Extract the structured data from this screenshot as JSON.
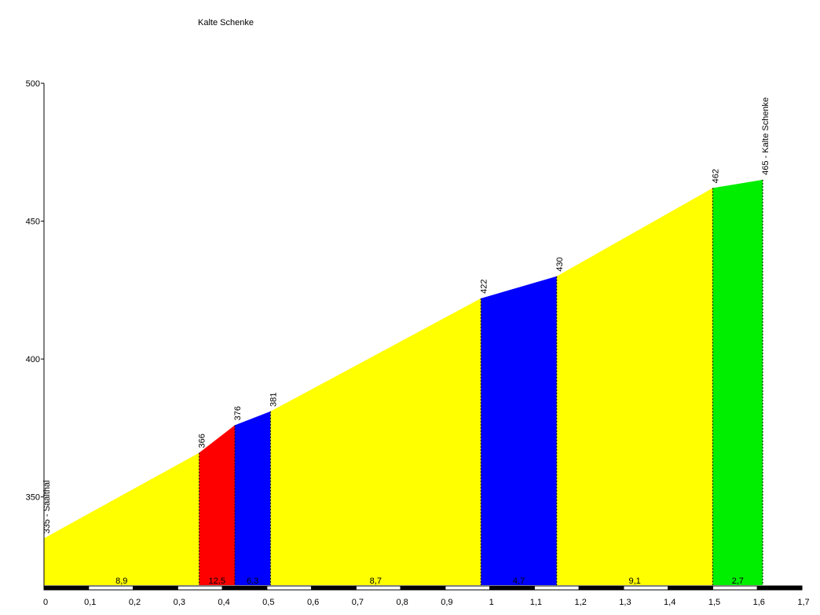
{
  "chart_data": {
    "type": "area",
    "title": "Kalte Schenke",
    "xlabel": "",
    "ylabel": "",
    "xlim": [
      0,
      1.7
    ],
    "ylim": [
      318,
      500
    ],
    "x_ticks": [
      {
        "value": 0,
        "label": "0"
      },
      {
        "value": 0.1,
        "label": "0,1"
      },
      {
        "value": 0.2,
        "label": "0,2"
      },
      {
        "value": 0.3,
        "label": "0,3"
      },
      {
        "value": 0.4,
        "label": "0,4"
      },
      {
        "value": 0.5,
        "label": "0,5"
      },
      {
        "value": 0.6,
        "label": "0,6"
      },
      {
        "value": 0.7,
        "label": "0,7"
      },
      {
        "value": 0.8,
        "label": "0,8"
      },
      {
        "value": 0.9,
        "label": "0,9"
      },
      {
        "value": 1.0,
        "label": "1"
      },
      {
        "value": 1.1,
        "label": "1,1"
      },
      {
        "value": 1.2,
        "label": "1,2"
      },
      {
        "value": 1.3,
        "label": "1,3"
      },
      {
        "value": 1.4,
        "label": "1,4"
      },
      {
        "value": 1.5,
        "label": "1,5"
      },
      {
        "value": 1.6,
        "label": "1,6"
      },
      {
        "value": 1.7,
        "label": "1,7"
      }
    ],
    "y_ticks": [
      {
        "value": 350,
        "label": "350"
      },
      {
        "value": 400,
        "label": "400"
      },
      {
        "value": 450,
        "label": "450"
      },
      {
        "value": 500,
        "label": "500"
      }
    ],
    "points": [
      {
        "x": 0,
        "y": 335,
        "label": "335 - Saalthal"
      },
      {
        "x": 0.348,
        "y": 366,
        "label": "366"
      },
      {
        "x": 0.428,
        "y": 376,
        "label": "376"
      },
      {
        "x": 0.508,
        "y": 381,
        "label": "381"
      },
      {
        "x": 0.98,
        "y": 422,
        "label": "422"
      },
      {
        "x": 1.15,
        "y": 430,
        "label": "430"
      },
      {
        "x": 1.5,
        "y": 462,
        "label": "462"
      },
      {
        "x": 1.612,
        "y": 465,
        "label": "465 - Kalte Schenke"
      }
    ],
    "segments": [
      {
        "x0": 0,
        "x1": 0.348,
        "y0": 335,
        "y1": 366,
        "gradient": "8,9",
        "color": "#ffff00"
      },
      {
        "x0": 0.348,
        "x1": 0.428,
        "y0": 366,
        "y1": 376,
        "gradient": "12,5",
        "color": "#ff0000"
      },
      {
        "x0": 0.428,
        "x1": 0.508,
        "y0": 376,
        "y1": 381,
        "gradient": "6,3",
        "color": "#0000ff"
      },
      {
        "x0": 0.508,
        "x1": 0.98,
        "y0": 381,
        "y1": 422,
        "gradient": "8,7",
        "color": "#ffff00"
      },
      {
        "x0": 0.98,
        "x1": 1.15,
        "y0": 422,
        "y1": 430,
        "gradient": "4,7",
        "color": "#0000ff"
      },
      {
        "x0": 1.15,
        "x1": 1.5,
        "y0": 430,
        "y1": 462,
        "gradient": "9,1",
        "color": "#ffff00"
      },
      {
        "x0": 1.5,
        "x1": 1.612,
        "y0": 462,
        "y1": 465,
        "gradient": "2,7",
        "color": "#00ee00"
      }
    ]
  }
}
